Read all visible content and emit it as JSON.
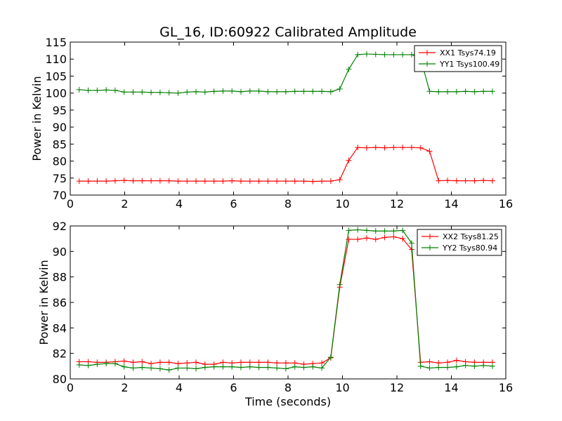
{
  "chart_data": [
    {
      "type": "line",
      "title": "GL_16, ID:60922 Calibrated Amplitude",
      "xlabel": "",
      "ylabel": "Power in Kelvin",
      "xlim": [
        0,
        16
      ],
      "ylim": [
        70,
        115
      ],
      "xticks": [
        "0",
        "2",
        "4",
        "6",
        "8",
        "10",
        "12",
        "14",
        "16"
      ],
      "yticks": [
        "70",
        "75",
        "80",
        "85",
        "90",
        "95",
        "100",
        "105",
        "110",
        "115"
      ],
      "grid": false,
      "legend_position": "top-right",
      "x": [
        0.33,
        0.66,
        0.99,
        1.32,
        1.65,
        1.98,
        2.31,
        2.64,
        2.97,
        3.3,
        3.63,
        3.96,
        4.29,
        4.62,
        4.95,
        5.28,
        5.61,
        5.94,
        6.27,
        6.6,
        6.93,
        7.26,
        7.59,
        7.92,
        8.25,
        8.58,
        8.91,
        9.24,
        9.57,
        9.9,
        10.23,
        10.56,
        10.89,
        11.22,
        11.55,
        11.88,
        12.21,
        12.54,
        12.87,
        13.2,
        13.53,
        13.86,
        14.19,
        14.52,
        14.85,
        15.18,
        15.51
      ],
      "series": [
        {
          "name": "XX1 Tsys74.19",
          "color": "#ff0000",
          "values": [
            74.1,
            74.1,
            74.1,
            74.1,
            74.2,
            74.3,
            74.2,
            74.2,
            74.2,
            74.2,
            74.2,
            74.1,
            74.1,
            74.1,
            74.1,
            74.1,
            74.1,
            74.2,
            74.1,
            74.1,
            74.1,
            74.1,
            74.1,
            74.1,
            74.1,
            74.1,
            74.0,
            74.1,
            74.1,
            74.5,
            80.2,
            84.0,
            83.9,
            84.0,
            83.9,
            84.0,
            84.0,
            84.0,
            83.9,
            82.9,
            74.2,
            74.3,
            74.2,
            74.2,
            74.2,
            74.3,
            74.2
          ]
        },
        {
          "name": "YY1 Tsys100.49",
          "color": "#008000",
          "values": [
            101.0,
            100.8,
            100.8,
            100.9,
            100.8,
            100.3,
            100.3,
            100.3,
            100.2,
            100.2,
            100.1,
            100.0,
            100.3,
            100.4,
            100.3,
            100.5,
            100.6,
            100.6,
            100.4,
            100.6,
            100.6,
            100.4,
            100.4,
            100.4,
            100.5,
            100.5,
            100.5,
            100.5,
            100.4,
            101.2,
            107.0,
            111.3,
            111.5,
            111.4,
            111.3,
            111.3,
            111.3,
            111.3,
            110.3,
            100.5,
            100.4,
            100.4,
            100.4,
            100.5,
            100.4,
            100.5,
            100.5
          ]
        }
      ]
    },
    {
      "type": "line",
      "title": "",
      "xlabel": "Time (seconds)",
      "ylabel": "Power in Kelvin",
      "xlim": [
        0,
        16
      ],
      "ylim": [
        80,
        92
      ],
      "xticks": [
        "0",
        "2",
        "4",
        "6",
        "8",
        "10",
        "12",
        "14",
        "16"
      ],
      "yticks": [
        "80",
        "82",
        "84",
        "86",
        "88",
        "90",
        "92"
      ],
      "grid": false,
      "legend_position": "top-right",
      "x": [
        0.33,
        0.66,
        0.99,
        1.32,
        1.65,
        1.98,
        2.31,
        2.64,
        2.97,
        3.3,
        3.63,
        3.96,
        4.29,
        4.62,
        4.95,
        5.28,
        5.61,
        5.94,
        6.27,
        6.6,
        6.93,
        7.26,
        7.59,
        7.92,
        8.25,
        8.58,
        8.91,
        9.24,
        9.57,
        9.9,
        10.23,
        10.56,
        10.89,
        11.22,
        11.55,
        11.88,
        12.21,
        12.54,
        12.87,
        13.2,
        13.53,
        13.86,
        14.19,
        14.52,
        14.85,
        15.18,
        15.51
      ],
      "series": [
        {
          "name": "XX2 Tsys81.25",
          "color": "#ff0000",
          "values": [
            81.35,
            81.35,
            81.3,
            81.3,
            81.35,
            81.4,
            81.3,
            81.35,
            81.2,
            81.3,
            81.3,
            81.2,
            81.25,
            81.3,
            81.15,
            81.15,
            81.3,
            81.25,
            81.3,
            81.3,
            81.3,
            81.3,
            81.25,
            81.25,
            81.25,
            81.15,
            81.2,
            81.25,
            81.65,
            87.2,
            90.95,
            90.95,
            91.05,
            90.95,
            91.1,
            91.15,
            91.0,
            90.15,
            81.3,
            81.35,
            81.25,
            81.3,
            81.45,
            81.35,
            81.3,
            81.3,
            81.3
          ]
        },
        {
          "name": "YY2 Tsys80.94",
          "color": "#008000",
          "values": [
            81.1,
            81.05,
            81.15,
            81.2,
            81.2,
            80.95,
            80.85,
            80.9,
            80.85,
            80.8,
            80.7,
            80.85,
            80.85,
            80.8,
            80.9,
            80.95,
            80.95,
            80.95,
            80.9,
            80.95,
            80.9,
            80.9,
            80.85,
            80.8,
            80.95,
            80.9,
            80.95,
            80.85,
            81.7,
            87.4,
            91.65,
            91.7,
            91.65,
            91.6,
            91.6,
            91.6,
            91.65,
            90.65,
            81.0,
            80.85,
            80.9,
            80.9,
            80.95,
            81.05,
            81.0,
            81.05,
            81.0
          ]
        }
      ]
    }
  ]
}
